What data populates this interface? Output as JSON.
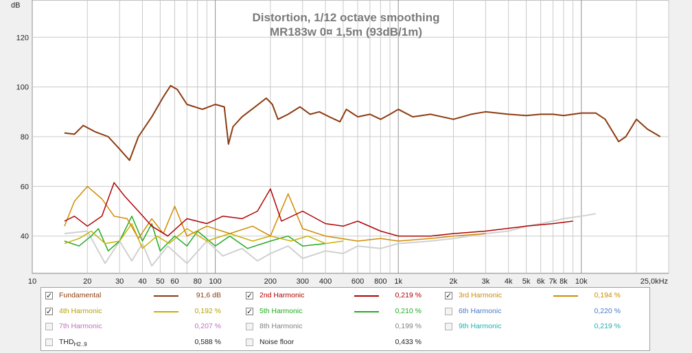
{
  "chart_data": {
    "type": "line",
    "title": "Distortion, 1/12 octave smoothing",
    "subtitle": "MR183w 0¤ 1,5m (93dB/1m)",
    "ylabel": "dB",
    "xscale": "log",
    "xlim": [
      10,
      30000
    ],
    "ylim": [
      25,
      135
    ],
    "grid": true,
    "x_ticks": [
      10,
      20,
      30,
      40,
      50,
      60,
      80,
      100,
      200,
      300,
      400,
      600,
      800,
      1000,
      2000,
      3000,
      4000,
      5000,
      6000,
      7000,
      8000,
      10000,
      25000
    ],
    "x_tick_labels": [
      "10",
      "20",
      "30",
      "40",
      "50",
      "60",
      "80",
      "100",
      "200",
      "300",
      "400",
      "600",
      "800",
      "1k",
      "2k",
      "3k",
      "4k",
      "5k",
      "6k",
      "7k",
      "8k",
      "10k",
      "25,0kHz"
    ],
    "y_ticks": [
      40,
      60,
      80,
      100,
      120
    ],
    "y_tick_labels": [
      "40",
      "60",
      "80",
      "100",
      "120"
    ],
    "series": [
      {
        "name": "Fundamental",
        "color": "#8b3a0e",
        "width": 2,
        "points": [
          [
            15,
            81.5
          ],
          [
            17,
            81
          ],
          [
            19,
            84.5
          ],
          [
            22,
            82
          ],
          [
            26,
            80
          ],
          [
            30,
            75
          ],
          [
            34,
            70.5
          ],
          [
            38,
            80
          ],
          [
            45,
            88
          ],
          [
            52,
            96
          ],
          [
            57,
            100.5
          ],
          [
            62,
            99
          ],
          [
            70,
            93
          ],
          [
            85,
            91
          ],
          [
            100,
            93
          ],
          [
            112,
            92
          ],
          [
            118,
            77
          ],
          [
            125,
            84
          ],
          [
            140,
            88
          ],
          [
            165,
            92
          ],
          [
            190,
            95.5
          ],
          [
            205,
            93
          ],
          [
            220,
            87
          ],
          [
            250,
            89
          ],
          [
            290,
            92
          ],
          [
            330,
            89
          ],
          [
            370,
            90
          ],
          [
            420,
            88
          ],
          [
            480,
            86
          ],
          [
            520,
            91
          ],
          [
            600,
            88
          ],
          [
            700,
            89
          ],
          [
            800,
            87
          ],
          [
            900,
            89
          ],
          [
            1000,
            91
          ],
          [
            1200,
            88
          ],
          [
            1500,
            89
          ],
          [
            2000,
            87
          ],
          [
            2500,
            89
          ],
          [
            3000,
            90
          ],
          [
            4000,
            89
          ],
          [
            5000,
            88.5
          ],
          [
            6000,
            89
          ],
          [
            7000,
            89
          ],
          [
            8000,
            88.5
          ],
          [
            10000,
            89.5
          ],
          [
            12000,
            89.5
          ],
          [
            13500,
            87
          ],
          [
            16000,
            78
          ],
          [
            17500,
            80
          ],
          [
            20000,
            87
          ],
          [
            23000,
            83
          ],
          [
            27000,
            80
          ]
        ]
      },
      {
        "name": "2nd Harmonic",
        "color": "#b00000",
        "width": 1.5,
        "points": [
          [
            15,
            46
          ],
          [
            17,
            48
          ],
          [
            20,
            44
          ],
          [
            24,
            48
          ],
          [
            28,
            61.5
          ],
          [
            32,
            56
          ],
          [
            38,
            50
          ],
          [
            45,
            44
          ],
          [
            55,
            40
          ],
          [
            70,
            47
          ],
          [
            90,
            45
          ],
          [
            110,
            48
          ],
          [
            140,
            47
          ],
          [
            170,
            50
          ],
          [
            200,
            59
          ],
          [
            230,
            46
          ],
          [
            300,
            50
          ],
          [
            400,
            45
          ],
          [
            500,
            44
          ],
          [
            600,
            46
          ],
          [
            800,
            42
          ],
          [
            1000,
            40
          ],
          [
            1500,
            40
          ],
          [
            2000,
            41
          ],
          [
            3000,
            42
          ],
          [
            5000,
            44
          ],
          [
            7000,
            45
          ],
          [
            9000,
            46
          ]
        ]
      },
      {
        "name": "3rd Harmonic",
        "color": "#d08a00",
        "width": 1.5,
        "points": [
          [
            15,
            44
          ],
          [
            17,
            54
          ],
          [
            20,
            60
          ],
          [
            24,
            55
          ],
          [
            28,
            48
          ],
          [
            33,
            47
          ],
          [
            38,
            39
          ],
          [
            45,
            47
          ],
          [
            52,
            41
          ],
          [
            60,
            52
          ],
          [
            70,
            40
          ],
          [
            90,
            44
          ],
          [
            120,
            41
          ],
          [
            160,
            44
          ],
          [
            200,
            40
          ],
          [
            250,
            57
          ],
          [
            300,
            43
          ],
          [
            400,
            40
          ],
          [
            600,
            38
          ],
          [
            800,
            39
          ],
          [
            1000,
            38
          ],
          [
            1500,
            39
          ],
          [
            2000,
            40
          ],
          [
            3000,
            41
          ]
        ]
      },
      {
        "name": "4th Harmonic",
        "color": "#c8b000",
        "width": 1.5,
        "points": [
          [
            15,
            37
          ],
          [
            18,
            39
          ],
          [
            21,
            42
          ],
          [
            25,
            37
          ],
          [
            30,
            38
          ],
          [
            35,
            45
          ],
          [
            40,
            35
          ],
          [
            48,
            40
          ],
          [
            56,
            37
          ],
          [
            70,
            43
          ],
          [
            90,
            38
          ],
          [
            120,
            41
          ],
          [
            160,
            38
          ],
          [
            200,
            40
          ],
          [
            260,
            38
          ],
          [
            320,
            40
          ],
          [
            400,
            37
          ],
          [
            500,
            38
          ]
        ]
      },
      {
        "name": "5th Harmonic",
        "color": "#22aa22",
        "width": 1.5,
        "points": [
          [
            15,
            38
          ],
          [
            18,
            36
          ],
          [
            21,
            40
          ],
          [
            23,
            43
          ],
          [
            26,
            34
          ],
          [
            30,
            38
          ],
          [
            35,
            48
          ],
          [
            40,
            38
          ],
          [
            45,
            45
          ],
          [
            50,
            34
          ],
          [
            60,
            40
          ],
          [
            70,
            36
          ],
          [
            80,
            42
          ],
          [
            100,
            36
          ],
          [
            120,
            40
          ],
          [
            150,
            35
          ],
          [
            200,
            38
          ],
          [
            250,
            40
          ],
          [
            300,
            36
          ],
          [
            400,
            37
          ]
        ]
      },
      {
        "name": "7th Harmonic",
        "color": "#c070c0",
        "width": 1,
        "points": []
      },
      {
        "name": "THD H2..9",
        "color": "#b0b0b0",
        "width": 1,
        "points": []
      },
      {
        "name": "Noise floor",
        "color": "#d0d0d0",
        "width": 2,
        "points": [
          [
            15,
            41
          ],
          [
            20,
            42
          ],
          [
            25,
            29
          ],
          [
            30,
            38
          ],
          [
            35,
            30
          ],
          [
            40,
            37
          ],
          [
            45,
            28
          ],
          [
            55,
            36
          ],
          [
            70,
            29
          ],
          [
            90,
            38
          ],
          [
            110,
            32
          ],
          [
            140,
            35
          ],
          [
            170,
            30
          ],
          [
            200,
            33
          ],
          [
            250,
            36
          ],
          [
            300,
            31
          ],
          [
            400,
            34
          ],
          [
            500,
            33
          ],
          [
            600,
            36
          ],
          [
            800,
            35
          ],
          [
            1000,
            37
          ],
          [
            1500,
            38
          ],
          [
            2000,
            39
          ],
          [
            3000,
            41
          ],
          [
            4000,
            42
          ],
          [
            5000,
            44
          ],
          [
            6000,
            45
          ],
          [
            7000,
            46
          ],
          [
            8000,
            47
          ],
          [
            10000,
            48
          ],
          [
            12000,
            49
          ]
        ]
      }
    ]
  },
  "legend": {
    "rows": [
      [
        {
          "label": "Fundamental",
          "checked": "✓",
          "value": "91,6 dB",
          "color": "#8b3a0e",
          "text_color": "#8b3a0e"
        },
        {
          "label": "2nd Harmonic",
          "checked": "✓",
          "value": "0,219 %",
          "color": "#b00000",
          "text_color": "#b00000"
        },
        {
          "label": "3rd Harmonic",
          "checked": "✓",
          "value": "0,194 %",
          "color": "#d08a00",
          "text_color": "#d08a00"
        }
      ],
      [
        {
          "label": "4th Harmonic",
          "checked": "✓",
          "value": "0,192 %",
          "color": "#c8b000",
          "text_color": "#b8a000"
        },
        {
          "label": "5th Harmonic",
          "checked": "✓",
          "value": "0,210 %",
          "color": "#22aa22",
          "text_color": "#22aa22"
        },
        {
          "label": "6th Harmonic",
          "checked": "",
          "value": "0,220 %",
          "color": "",
          "text_color": "#4a7ac8"
        }
      ],
      [
        {
          "label": "7th Harmonic",
          "checked": "",
          "value": "0,207 %",
          "color": "",
          "text_color": "#c070c0"
        },
        {
          "label": "8th Harmonic",
          "checked": "",
          "value": "0,199 %",
          "color": "",
          "text_color": "#808080"
        },
        {
          "label": "9th Harmonic",
          "checked": "",
          "value": "0,219 %",
          "color": "",
          "text_color": "#20b0b0"
        }
      ],
      [
        {
          "label": "THD",
          "label_sub": "H2..9",
          "checked": "",
          "value": "0,588 %",
          "color": "",
          "text_color": "#222222"
        },
        {
          "label": "Noise floor",
          "checked": "",
          "value": "0,433 %",
          "color": "",
          "text_color": "#222222"
        }
      ]
    ]
  }
}
